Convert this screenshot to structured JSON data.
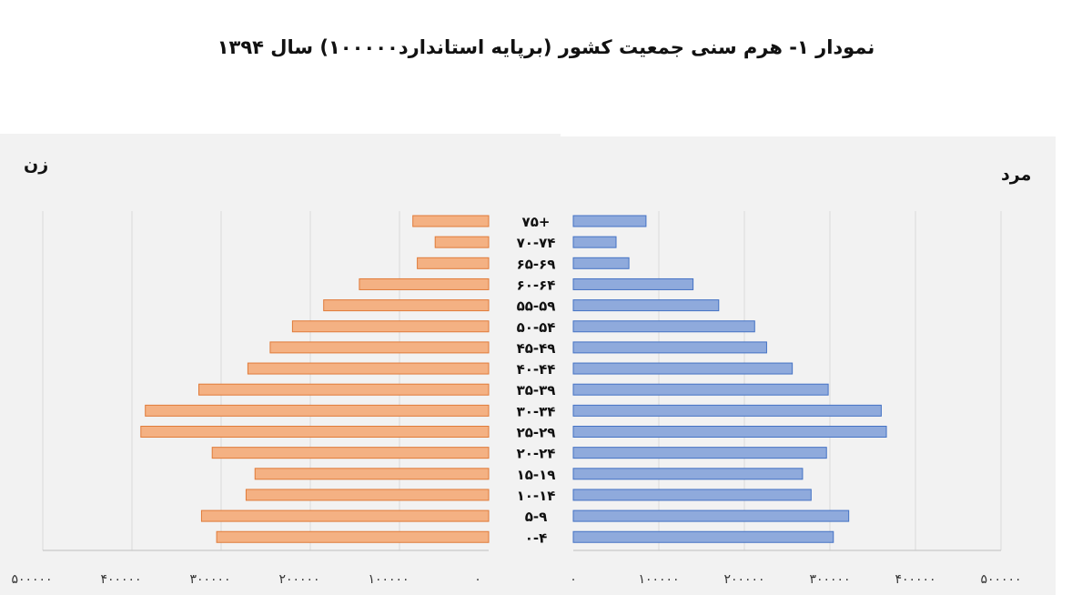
{
  "title": "نمودار ۱- هرم سنی جمعیت کشور (برپایه استاندارد۱۰۰۰۰۰) سال ۱۳۹۴",
  "labels": {
    "women": "زن",
    "men": "مرد"
  },
  "colors": {
    "women": "#F4B183",
    "women_stroke": "#E07B39",
    "men": "#8FAADC",
    "men_stroke": "#4472C4",
    "grid": "#d9d9d9"
  },
  "chart_data": {
    "type": "bar",
    "orientation": "horizontal-pyramid",
    "categories": [
      "۷۵+",
      "۷۰-۷۴",
      "۶۵-۶۹",
      "۶۰-۶۴",
      "۵۵-۵۹",
      "۵۰-۵۴",
      "۴۵-۴۹",
      "۴۰-۴۴",
      "۳۵-۳۹",
      "۳۰-۳۴",
      "۲۵-۲۹",
      "۲۰-۲۴",
      "۱۵-۱۹",
      "۱۰-۱۴",
      "۵-۹",
      "۰-۴"
    ],
    "series": [
      {
        "name": "زن",
        "values": [
          85000,
          60000,
          80000,
          145000,
          185000,
          220000,
          245000,
          270000,
          325000,
          385000,
          390000,
          310000,
          262000,
          272000,
          322000,
          305000
        ]
      },
      {
        "name": "مرد",
        "values": [
          85000,
          50000,
          65000,
          140000,
          170000,
          212000,
          226000,
          256000,
          298000,
          360000,
          366000,
          296000,
          268000,
          278000,
          322000,
          304000
        ]
      }
    ],
    "xlim": [
      0,
      500000
    ],
    "women_ticks": [
      "۵۰۰۰۰۰",
      "۴۰۰۰۰۰",
      "۳۰۰۰۰۰",
      "۲۰۰۰۰۰",
      "۱۰۰۰۰۰",
      "۰"
    ],
    "men_ticks": [
      "۰",
      "۱۰۰۰۰۰",
      "۲۰۰۰۰۰",
      "۳۰۰۰۰۰",
      "۴۰۰۰۰۰",
      "۵۰۰۰۰۰"
    ],
    "grid": true
  }
}
